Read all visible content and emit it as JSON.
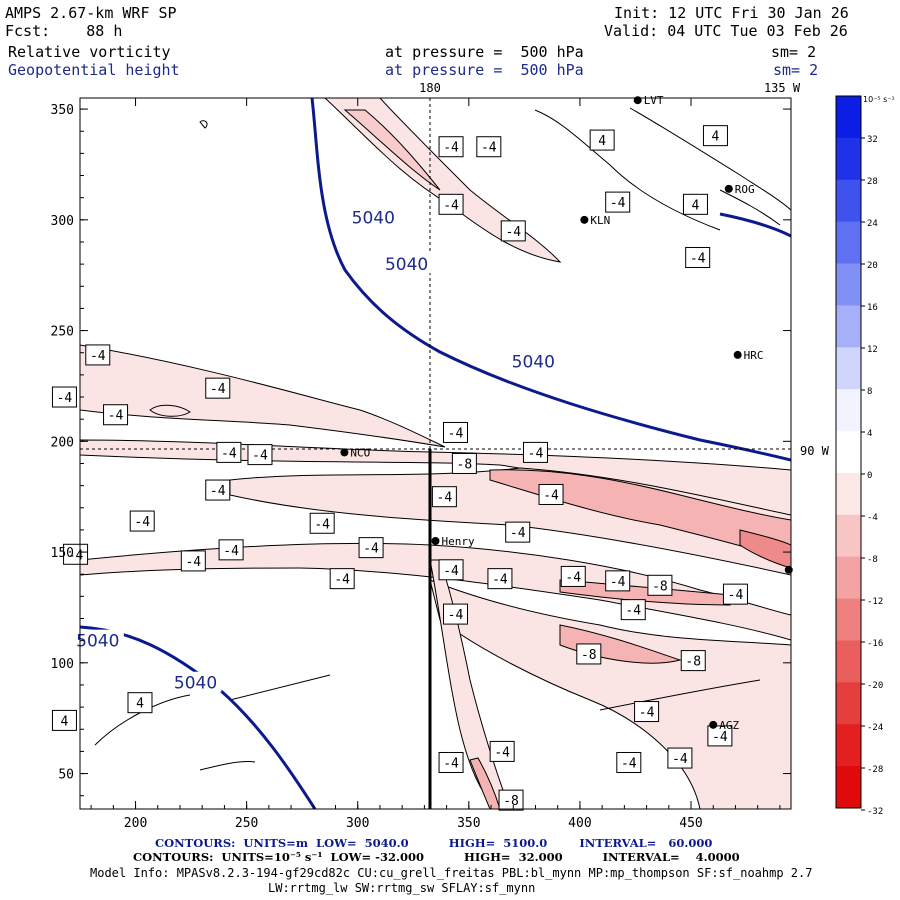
{
  "header": {
    "model": "AMPS 2.67-km WRF SP",
    "fcst": "Fcst:    88 h",
    "init": "Init: 12 UTC Fri 30 Jan 26",
    "valid": "Valid: 04 UTC Tue 03 Feb 26",
    "field1": "Relative vorticity",
    "field2": "Geopotential height",
    "level1": "at pressure =  500 hPa",
    "level2": "at pressure =  500 hPa",
    "sm1": "sm= 2",
    "sm2": "sm= 2"
  },
  "map": {
    "top_labels": [
      "180",
      "135 W"
    ],
    "side_label": "90 W",
    "x_ticks": [
      200,
      250,
      300,
      350,
      400,
      450
    ],
    "y_ticks": [
      50,
      100,
      150,
      200,
      250,
      300,
      350
    ],
    "x_range": [
      175,
      495
    ],
    "y_range": [
      34,
      355
    ],
    "stations": [
      {
        "name": "LVT",
        "x": 426,
        "y": 354
      },
      {
        "name": "ROG",
        "x": 467,
        "y": 314
      },
      {
        "name": "KLN",
        "x": 402,
        "y": 300
      },
      {
        "name": "HRC",
        "x": 471,
        "y": 239
      },
      {
        "name": "NCO",
        "x": 294,
        "y": 195
      },
      {
        "name": "Henry",
        "x": 335,
        "y": 155
      },
      {
        "name": "AGZ",
        "x": 460,
        "y": 72
      },
      {
        "name": "",
        "x": 494,
        "y": 142
      }
    ],
    "height_labels": [
      {
        "text": "5040",
        "x": 307,
        "y": 301
      },
      {
        "text": "5040",
        "x": 322,
        "y": 280
      },
      {
        "text": "5040",
        "x": 379,
        "y": 236
      },
      {
        "text": "5040",
        "x": 183,
        "y": 110
      },
      {
        "text": "5040",
        "x": 227,
        "y": 91
      }
    ],
    "vort_labels": [
      {
        "t": "-4",
        "x": 342,
        "y": 333
      },
      {
        "t": "-4",
        "x": 359,
        "y": 333
      },
      {
        "t": "4",
        "x": 410,
        "y": 336
      },
      {
        "t": "4",
        "x": 461,
        "y": 338
      },
      {
        "t": "-4",
        "x": 342,
        "y": 307
      },
      {
        "t": "-4",
        "x": 417,
        "y": 308
      },
      {
        "t": "-4",
        "x": 370,
        "y": 295
      },
      {
        "t": "4",
        "x": 452,
        "y": 307
      },
      {
        "t": "-4",
        "x": 453,
        "y": 283
      },
      {
        "t": "-4",
        "x": 183,
        "y": 239
      },
      {
        "t": "-4",
        "x": 237,
        "y": 224
      },
      {
        "t": "-4",
        "x": 168,
        "y": 220
      },
      {
        "t": "-4",
        "x": 191,
        "y": 212
      },
      {
        "t": "-4",
        "x": 344,
        "y": 204
      },
      {
        "t": "-4",
        "x": 242,
        "y": 195
      },
      {
        "t": "-4",
        "x": 256,
        "y": 194
      },
      {
        "t": "-4",
        "x": 380,
        "y": 195
      },
      {
        "t": "-8",
        "x": 348,
        "y": 190
      },
      {
        "t": "-4",
        "x": 237,
        "y": 178
      },
      {
        "t": "-4",
        "x": 339,
        "y": 175
      },
      {
        "t": "-4",
        "x": 387,
        "y": 176
      },
      {
        "t": "-4",
        "x": 203,
        "y": 164
      },
      {
        "t": "-4",
        "x": 284,
        "y": 163
      },
      {
        "t": "-4",
        "x": 372,
        "y": 159
      },
      {
        "t": "-4",
        "x": 306,
        "y": 152
      },
      {
        "t": "-4",
        "x": 173,
        "y": 149
      },
      {
        "t": "-4",
        "x": 243,
        "y": 151
      },
      {
        "t": "-4",
        "x": 226,
        "y": 146
      },
      {
        "t": "-4",
        "x": 342,
        "y": 142
      },
      {
        "t": "-4",
        "x": 293,
        "y": 138
      },
      {
        "t": "-4",
        "x": 364,
        "y": 138
      },
      {
        "t": "-4",
        "x": 397,
        "y": 139
      },
      {
        "t": "-4",
        "x": 417,
        "y": 137
      },
      {
        "t": "-8",
        "x": 436,
        "y": 135
      },
      {
        "t": "-4",
        "x": 470,
        "y": 131
      },
      {
        "t": "-4",
        "x": 344,
        "y": 122
      },
      {
        "t": "-4",
        "x": 424,
        "y": 124
      },
      {
        "t": "-8",
        "x": 404,
        "y": 104
      },
      {
        "t": "-8",
        "x": 451,
        "y": 101
      },
      {
        "t": "4",
        "x": 202,
        "y": 82
      },
      {
        "t": "4",
        "x": 168,
        "y": 74
      },
      {
        "t": "-4",
        "x": 430,
        "y": 78
      },
      {
        "t": "-4",
        "x": 365,
        "y": 60
      },
      {
        "t": "-4",
        "x": 342,
        "y": 55
      },
      {
        "t": "-4",
        "x": 422,
        "y": 55
      },
      {
        "t": "-4",
        "x": 445,
        "y": 57
      },
      {
        "t": "-4",
        "x": 463,
        "y": 67
      },
      {
        "t": "-8",
        "x": 369,
        "y": 38
      }
    ]
  },
  "colorbar": {
    "unit": "10⁻⁵ s⁻¹",
    "ticks": [
      "32",
      "28",
      "24",
      "20",
      "16",
      "12",
      "8",
      "4",
      "0",
      "-4",
      "-8",
      "-12",
      "-16",
      "-20",
      "-24",
      "-28",
      "-32"
    ],
    "colors": [
      "#0a1ee6",
      "#1f32ea",
      "#3f52ee",
      "#5f71f2",
      "#8090f5",
      "#a5b0f8",
      "#cfd5fb",
      "#f2f3fe",
      "#ffffff",
      "#fde8e8",
      "#f8c5c5",
      "#f3a3a3",
      "#ee8080",
      "#ea5e5e",
      "#e63d3d",
      "#e31f1f",
      "#e00a0a"
    ]
  },
  "footer": {
    "line1": "CONTOURS:  UNITS=m  LOW=  5040.0          HIGH=  5100.0        INTERVAL=   60.000",
    "line2": "CONTOURS:  UNITS=10⁻⁵ s⁻¹  LOW= -32.000          HIGH=  32.000          INTERVAL=    4.0000",
    "line3": "Model Info: MPASv8.2.3-194-gf29cd82c CU:cu_grell_freitas PBL:bl_mynn MP:mp_thompson SF:sf_noahmp 2.7",
    "line4": "LW:rrtmg_lw SW:rrtmg_sw SFLAY:sf_mynn"
  }
}
